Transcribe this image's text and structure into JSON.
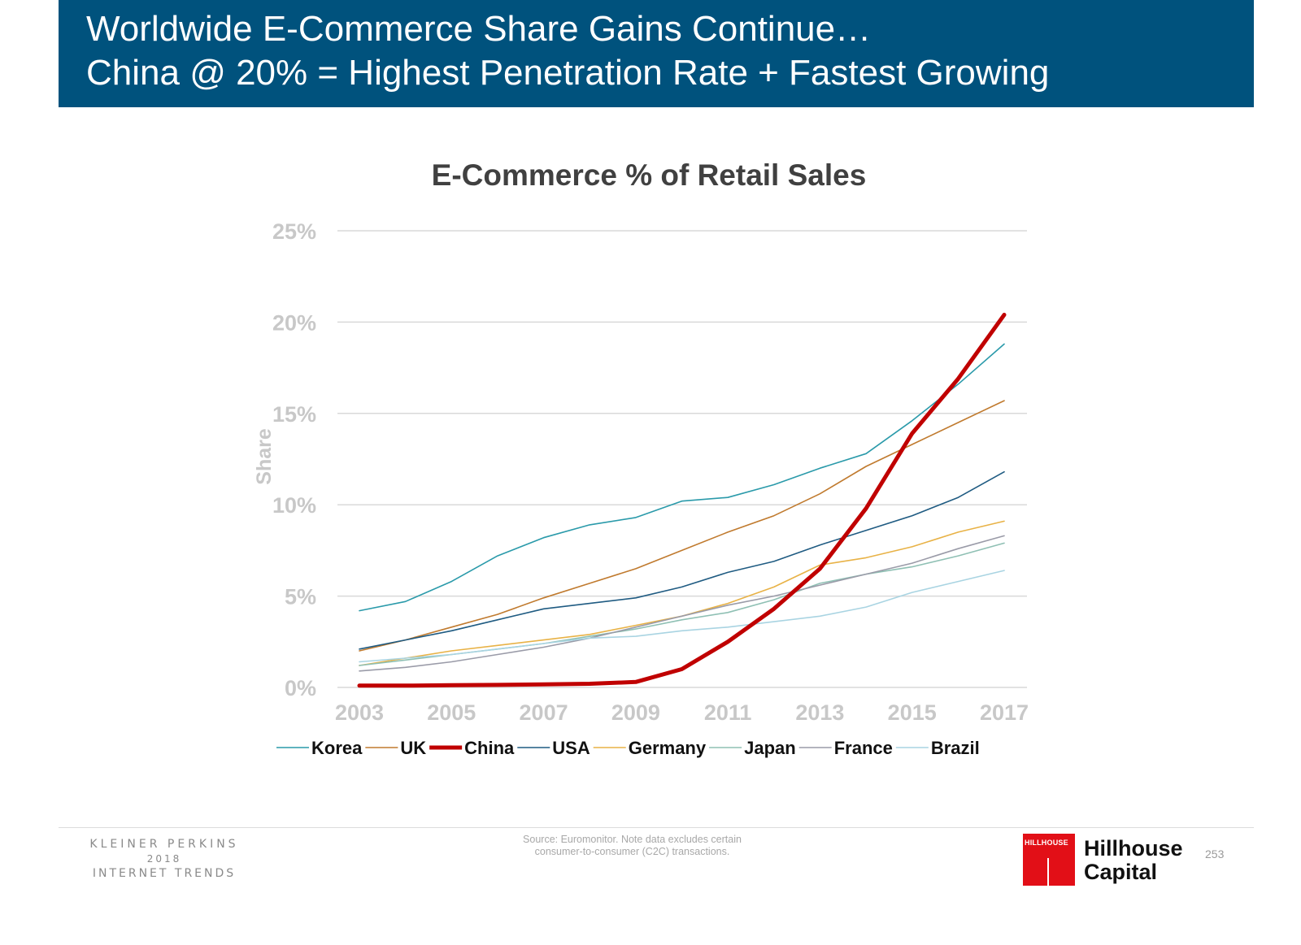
{
  "header": {
    "line1": "Worldwide E-Commerce Share Gains Continue…",
    "line2": "China @ 20% = Highest Penetration Rate + Fastest Growing",
    "background": "#00527d"
  },
  "chart_data": {
    "type": "line",
    "title": "E-Commerce % of Retail Sales",
    "ylabel": "Share",
    "xlabel": "",
    "ylim": [
      0,
      25
    ],
    "yticks": [
      "0%",
      "5%",
      "10%",
      "15%",
      "20%",
      "25%"
    ],
    "xlim": [
      2003,
      2017
    ],
    "xticks": [
      "2003",
      "2005",
      "2007",
      "2009",
      "2011",
      "2013",
      "2015",
      "2017"
    ],
    "grid": true,
    "legend_position": "bottom",
    "x": [
      2003,
      2004,
      2005,
      2006,
      2007,
      2008,
      2009,
      2010,
      2011,
      2012,
      2013,
      2014,
      2015,
      2016,
      2017
    ],
    "series": [
      {
        "name": "Korea",
        "color": "#2a9aaa",
        "width": 1.6,
        "values": [
          4.2,
          4.7,
          5.8,
          7.2,
          8.2,
          8.9,
          9.3,
          10.2,
          10.4,
          11.1,
          12.0,
          12.8,
          14.6,
          16.6,
          18.8
        ]
      },
      {
        "name": "UK",
        "color": "#c07a2e",
        "width": 1.6,
        "values": [
          2.0,
          2.6,
          3.3,
          4.0,
          4.9,
          5.7,
          6.5,
          7.5,
          8.5,
          9.4,
          10.6,
          12.1,
          13.3,
          14.5,
          15.7
        ]
      },
      {
        "name": "China",
        "color": "#c00000",
        "width": 5,
        "values": [
          0.1,
          0.1,
          0.12,
          0.14,
          0.17,
          0.2,
          0.3,
          1.0,
          2.5,
          4.3,
          6.5,
          9.8,
          13.9,
          16.9,
          20.4
        ]
      },
      {
        "name": "USA",
        "color": "#1f5b82",
        "width": 1.6,
        "values": [
          2.1,
          2.6,
          3.1,
          3.7,
          4.3,
          4.6,
          4.9,
          5.5,
          6.3,
          6.9,
          7.8,
          8.6,
          9.4,
          10.4,
          11.8
        ]
      },
      {
        "name": "Germany",
        "color": "#e8b246",
        "width": 1.6,
        "values": [
          1.2,
          1.6,
          2.0,
          2.3,
          2.6,
          2.9,
          3.4,
          3.9,
          4.6,
          5.5,
          6.7,
          7.1,
          7.7,
          8.5,
          9.1
        ]
      },
      {
        "name": "Japan",
        "color": "#8fc0b4",
        "width": 1.6,
        "values": [
          1.2,
          1.5,
          1.8,
          2.1,
          2.4,
          2.8,
          3.2,
          3.7,
          4.1,
          4.8,
          5.7,
          6.2,
          6.6,
          7.2,
          7.9
        ]
      },
      {
        "name": "France",
        "color": "#9a9ba8",
        "width": 1.6,
        "values": [
          0.9,
          1.1,
          1.4,
          1.8,
          2.2,
          2.7,
          3.3,
          3.9,
          4.5,
          5.0,
          5.6,
          6.2,
          6.8,
          7.6,
          8.3
        ]
      },
      {
        "name": "Brazil",
        "color": "#a9d4e2",
        "width": 1.6,
        "values": [
          1.4,
          1.6,
          1.8,
          2.1,
          2.4,
          2.7,
          2.8,
          3.1,
          3.3,
          3.6,
          3.9,
          4.4,
          5.2,
          5.8,
          6.4
        ]
      }
    ]
  },
  "footer": {
    "kp_line1": "KLEINER PERKINS",
    "kp_line2": "2018",
    "kp_line3": "INTERNET TRENDS",
    "source_line1": "Source: Euromonitor. Note data excludes certain",
    "source_line2": "consumer-to-consumer (C2C) transactions.",
    "logo_text": "HILLHOUSE",
    "logo_color": "#e20f17",
    "brand_line1": "Hillhouse",
    "brand_line2": "Capital",
    "page_number": "253"
  }
}
